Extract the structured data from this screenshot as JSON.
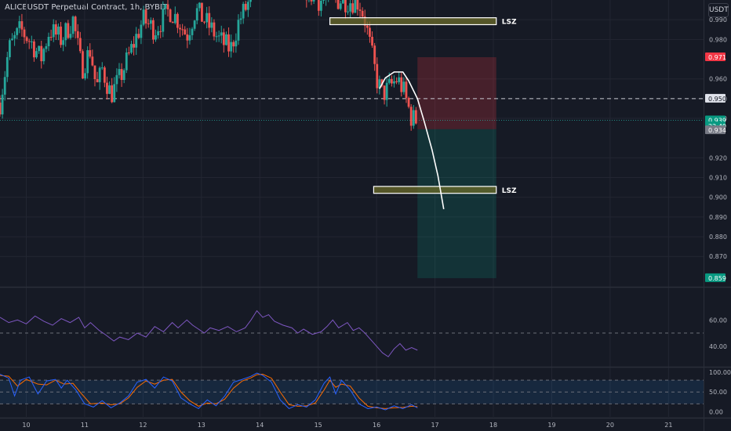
{
  "header": {
    "symbol": "ALICEUSDT Perpetual Contract, 1h, BYBIT",
    "currency": "USDT"
  },
  "colors": {
    "background": "#161a25",
    "up": "#26a69a",
    "down": "#ef5350",
    "zone_fill": "#6b6b2a",
    "stop": "#f23645",
    "target": "#089981",
    "rsi_line": "#7e57c2",
    "stoch_k": "#2962ff",
    "stoch_d": "#ff6d00"
  },
  "chart_data": {
    "type": "candlestick",
    "price_axis": {
      "ticks": [
        "0.990",
        "0.980",
        "0.960",
        "0.950",
        "0.940",
        "0.920",
        "0.910",
        "0.900",
        "0.890",
        "0.880",
        "0.870"
      ],
      "tick_values": [
        0.99,
        0.98,
        0.96,
        0.95,
        0.94,
        0.92,
        0.91,
        0.9,
        0.89,
        0.88,
        0.87
      ],
      "range": [
        0.855,
        1.0
      ]
    },
    "time_axis": {
      "labels": [
        "10",
        "11",
        "12",
        "13",
        "14",
        "15",
        "16",
        "17",
        "18",
        "19",
        "20",
        "21"
      ],
      "range": [
        9.55,
        21.6
      ]
    },
    "price_labels": [
      {
        "text": "0.971",
        "value": 0.971,
        "color": "#f23645"
      },
      {
        "text": "0.950",
        "value": 0.95,
        "color": "#e0e3eb",
        "dark_text": true
      },
      {
        "text": "0.939",
        "value": 0.939,
        "color": "#089981"
      },
      {
        "text": "22:49",
        "value": 0.936,
        "color": "#089981"
      },
      {
        "text": "0.934",
        "value": 0.934,
        "color": "#787b86"
      },
      {
        "text": "0.859",
        "value": 0.859,
        "color": "#089981"
      }
    ],
    "dashed_level": 0.95,
    "last_price": 0.939,
    "zones": [
      {
        "label": "LSZ",
        "t1": 15.2,
        "t2": 18.05,
        "p_top": 0.991,
        "p_bottom": 0.9875
      },
      {
        "label": "LSZ",
        "t1": 15.95,
        "t2": 18.05,
        "p_top": 0.9055,
        "p_bottom": 0.902
      }
    ],
    "position": {
      "t1": 16.7,
      "t2": 18.05,
      "stop": 0.971,
      "entry": 0.9345,
      "target": 0.859
    },
    "projection": [
      [
        16.05,
        0.955
      ],
      [
        16.15,
        0.9605
      ],
      [
        16.3,
        0.9635
      ],
      [
        16.45,
        0.9635
      ],
      [
        16.55,
        0.959
      ],
      [
        16.7,
        0.95
      ],
      [
        16.82,
        0.938
      ],
      [
        16.95,
        0.924
      ],
      [
        17.05,
        0.911
      ],
      [
        17.15,
        0.894
      ]
    ],
    "candles_seed": 7,
    "rsi": {
      "ticks": [
        "60.00",
        "40.00"
      ],
      "tick_values": [
        60,
        40
      ],
      "range": [
        25,
        84
      ],
      "dashed_levels": [
        50
      ],
      "points": [
        [
          9.55,
          62
        ],
        [
          9.7,
          58
        ],
        [
          9.85,
          60
        ],
        [
          10.0,
          57
        ],
        [
          10.15,
          63
        ],
        [
          10.3,
          59
        ],
        [
          10.45,
          56
        ],
        [
          10.6,
          61
        ],
        [
          10.75,
          58
        ],
        [
          10.9,
          62
        ],
        [
          11.0,
          54
        ],
        [
          11.1,
          58
        ],
        [
          11.25,
          52
        ],
        [
          11.35,
          49
        ],
        [
          11.5,
          44
        ],
        [
          11.6,
          47
        ],
        [
          11.75,
          45
        ],
        [
          11.9,
          50
        ],
        [
          12.05,
          47
        ],
        [
          12.2,
          55
        ],
        [
          12.35,
          51
        ],
        [
          12.5,
          58
        ],
        [
          12.6,
          54
        ],
        [
          12.75,
          60
        ],
        [
          12.85,
          56
        ],
        [
          12.95,
          53
        ],
        [
          13.05,
          50
        ],
        [
          13.15,
          54
        ],
        [
          13.3,
          52
        ],
        [
          13.45,
          55
        ],
        [
          13.6,
          51
        ],
        [
          13.75,
          54
        ],
        [
          13.85,
          60
        ],
        [
          13.95,
          67
        ],
        [
          14.05,
          62
        ],
        [
          14.15,
          64
        ],
        [
          14.25,
          59
        ],
        [
          14.4,
          56
        ],
        [
          14.55,
          54
        ],
        [
          14.65,
          50
        ],
        [
          14.75,
          53
        ],
        [
          14.9,
          49
        ],
        [
          15.05,
          51
        ],
        [
          15.15,
          55
        ],
        [
          15.25,
          60
        ],
        [
          15.35,
          54
        ],
        [
          15.5,
          58
        ],
        [
          15.6,
          52
        ],
        [
          15.7,
          54
        ],
        [
          15.8,
          50
        ],
        [
          15.9,
          45
        ],
        [
          16.0,
          40
        ],
        [
          16.1,
          35
        ],
        [
          16.2,
          32
        ],
        [
          16.3,
          38
        ],
        [
          16.4,
          42
        ],
        [
          16.5,
          37
        ],
        [
          16.6,
          39
        ],
        [
          16.7,
          37
        ]
      ]
    },
    "stoch": {
      "ticks": [
        "100.00",
        "50.00",
        "0.00"
      ],
      "tick_values": [
        100,
        50,
        0
      ],
      "range": [
        -13,
        110
      ],
      "dashed_levels": [
        80,
        50,
        20
      ],
      "band": [
        20,
        80
      ],
      "k": [
        [
          9.55,
          95
        ],
        [
          9.7,
          85
        ],
        [
          9.8,
          40
        ],
        [
          9.9,
          80
        ],
        [
          10.05,
          88
        ],
        [
          10.2,
          45
        ],
        [
          10.35,
          78
        ],
        [
          10.5,
          82
        ],
        [
          10.6,
          60
        ],
        [
          10.7,
          80
        ],
        [
          10.85,
          55
        ],
        [
          11.0,
          20
        ],
        [
          11.15,
          12
        ],
        [
          11.3,
          28
        ],
        [
          11.45,
          10
        ],
        [
          11.6,
          22
        ],
        [
          11.75,
          40
        ],
        [
          11.9,
          75
        ],
        [
          12.05,
          82
        ],
        [
          12.2,
          60
        ],
        [
          12.35,
          88
        ],
        [
          12.5,
          78
        ],
        [
          12.65,
          35
        ],
        [
          12.8,
          20
        ],
        [
          12.95,
          8
        ],
        [
          13.1,
          30
        ],
        [
          13.25,
          15
        ],
        [
          13.4,
          40
        ],
        [
          13.55,
          75
        ],
        [
          13.7,
          82
        ],
        [
          13.85,
          90
        ],
        [
          13.95,
          98
        ],
        [
          14.05,
          92
        ],
        [
          14.2,
          75
        ],
        [
          14.35,
          30
        ],
        [
          14.5,
          8
        ],
        [
          14.65,
          18
        ],
        [
          14.8,
          12
        ],
        [
          14.95,
          30
        ],
        [
          15.1,
          72
        ],
        [
          15.2,
          88
        ],
        [
          15.3,
          45
        ],
        [
          15.4,
          80
        ],
        [
          15.55,
          55
        ],
        [
          15.7,
          20
        ],
        [
          15.85,
          8
        ],
        [
          16.0,
          12
        ],
        [
          16.15,
          5
        ],
        [
          16.3,
          15
        ],
        [
          16.45,
          8
        ],
        [
          16.6,
          18
        ],
        [
          16.7,
          10
        ]
      ],
      "d": [
        [
          9.55,
          92
        ],
        [
          9.7,
          90
        ],
        [
          9.85,
          65
        ],
        [
          10.0,
          82
        ],
        [
          10.2,
          70
        ],
        [
          10.35,
          68
        ],
        [
          10.5,
          80
        ],
        [
          10.65,
          70
        ],
        [
          10.8,
          72
        ],
        [
          10.95,
          45
        ],
        [
          11.1,
          20
        ],
        [
          11.3,
          22
        ],
        [
          11.45,
          18
        ],
        [
          11.6,
          20
        ],
        [
          11.75,
          35
        ],
        [
          11.9,
          62
        ],
        [
          12.05,
          78
        ],
        [
          12.2,
          70
        ],
        [
          12.35,
          80
        ],
        [
          12.5,
          82
        ],
        [
          12.65,
          50
        ],
        [
          12.8,
          28
        ],
        [
          12.95,
          14
        ],
        [
          13.1,
          22
        ],
        [
          13.25,
          20
        ],
        [
          13.4,
          32
        ],
        [
          13.55,
          60
        ],
        [
          13.7,
          78
        ],
        [
          13.85,
          86
        ],
        [
          13.95,
          94
        ],
        [
          14.05,
          95
        ],
        [
          14.2,
          85
        ],
        [
          14.35,
          50
        ],
        [
          14.5,
          18
        ],
        [
          14.65,
          14
        ],
        [
          14.8,
          15
        ],
        [
          14.95,
          22
        ],
        [
          15.1,
          55
        ],
        [
          15.2,
          80
        ],
        [
          15.3,
          62
        ],
        [
          15.4,
          70
        ],
        [
          15.55,
          65
        ],
        [
          15.7,
          35
        ],
        [
          15.85,
          14
        ],
        [
          16.0,
          10
        ],
        [
          16.15,
          8
        ],
        [
          16.3,
          10
        ],
        [
          16.45,
          11
        ],
        [
          16.6,
          14
        ],
        [
          16.7,
          13
        ]
      ]
    }
  }
}
